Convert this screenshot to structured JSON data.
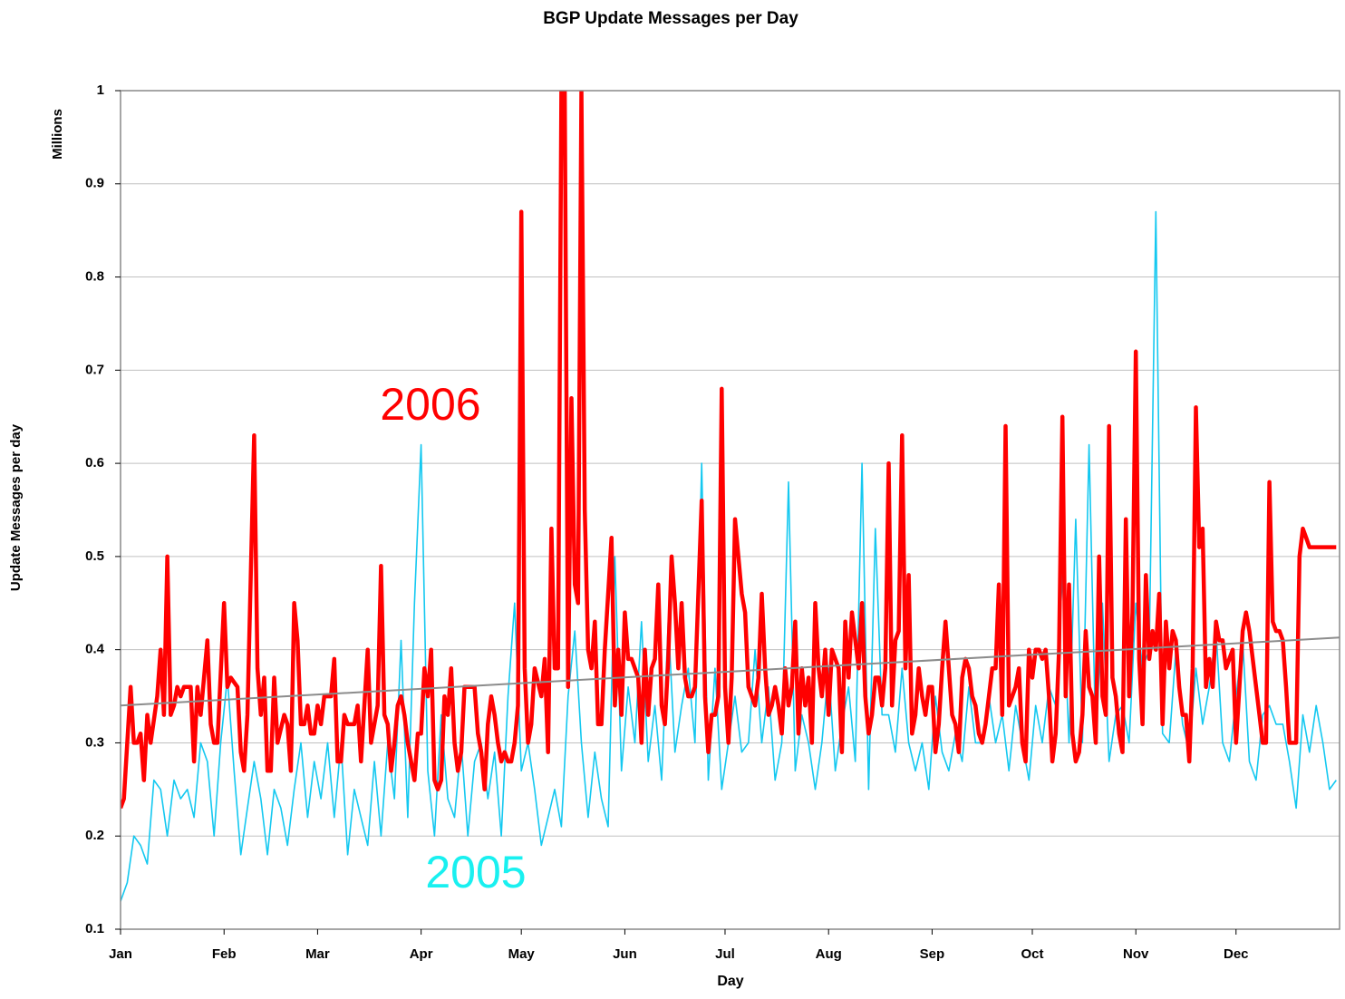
{
  "chart_data": {
    "type": "line",
    "title": "BGP Update Messages per Day",
    "y_label": "Update Messages per day",
    "y_unit_label": "Millions",
    "x_label": "Day",
    "xlim": [
      0,
      365
    ],
    "ylim": [
      0.1,
      1
    ],
    "yticks": [
      0.1,
      0.2,
      0.3,
      0.4,
      0.5,
      0.6,
      0.7,
      0.8,
      0.9,
      1
    ],
    "xticks": [
      {
        "value": 0,
        "label": "Jan"
      },
      {
        "value": 31,
        "label": "Feb"
      },
      {
        "value": 59,
        "label": "Mar"
      },
      {
        "value": 90,
        "label": "Apr"
      },
      {
        "value": 120,
        "label": "May"
      },
      {
        "value": 151,
        "label": "Jun"
      },
      {
        "value": 181,
        "label": "Jul"
      },
      {
        "value": 212,
        "label": "Aug"
      },
      {
        "value": 243,
        "label": "Sep"
      },
      {
        "value": 273,
        "label": "Oct"
      },
      {
        "value": 304,
        "label": "Nov"
      },
      {
        "value": 334,
        "label": "Dec"
      }
    ],
    "grid": true,
    "series": [
      {
        "name": "2005",
        "color": "#14c8f0",
        "width": 1.6,
        "x": [
          0,
          2,
          4,
          6,
          8,
          10,
          12,
          14,
          16,
          18,
          20,
          22,
          24,
          26,
          28,
          30,
          32,
          34,
          36,
          38,
          40,
          42,
          44,
          46,
          48,
          50,
          52,
          54,
          56,
          58,
          60,
          62,
          64,
          66,
          68,
          70,
          72,
          74,
          76,
          78,
          80,
          82,
          84,
          86,
          88,
          90,
          92,
          94,
          96,
          98,
          100,
          102,
          104,
          106,
          108,
          110,
          112,
          114,
          116,
          118,
          120,
          122,
          124,
          126,
          128,
          130,
          132,
          134,
          136,
          138,
          140,
          142,
          144,
          146,
          148,
          150,
          152,
          154,
          156,
          158,
          160,
          162,
          164,
          166,
          168,
          170,
          172,
          174,
          176,
          178,
          180,
          182,
          184,
          186,
          188,
          190,
          192,
          194,
          196,
          198,
          200,
          202,
          204,
          206,
          208,
          210,
          212,
          214,
          216,
          218,
          220,
          222,
          224,
          226,
          228,
          230,
          232,
          234,
          236,
          238,
          240,
          242,
          244,
          246,
          248,
          250,
          252,
          254,
          256,
          258,
          260,
          262,
          264,
          266,
          268,
          270,
          272,
          274,
          276,
          278,
          280,
          282,
          284,
          286,
          288,
          290,
          292,
          294,
          296,
          298,
          300,
          302,
          304,
          306,
          308,
          310,
          312,
          314,
          316,
          318,
          320,
          322,
          324,
          326,
          328,
          330,
          332,
          334,
          336,
          338,
          340,
          342,
          344,
          346,
          348,
          350,
          352,
          354,
          356,
          358,
          360,
          362,
          364
        ],
        "values": [
          0.13,
          0.15,
          0.2,
          0.19,
          0.17,
          0.26,
          0.25,
          0.2,
          0.26,
          0.24,
          0.25,
          0.22,
          0.3,
          0.28,
          0.2,
          0.3,
          0.37,
          0.27,
          0.18,
          0.23,
          0.28,
          0.24,
          0.18,
          0.25,
          0.23,
          0.19,
          0.25,
          0.3,
          0.22,
          0.28,
          0.24,
          0.3,
          0.22,
          0.3,
          0.18,
          0.25,
          0.22,
          0.19,
          0.28,
          0.2,
          0.3,
          0.24,
          0.41,
          0.22,
          0.45,
          0.62,
          0.27,
          0.2,
          0.33,
          0.24,
          0.22,
          0.3,
          0.2,
          0.28,
          0.3,
          0.24,
          0.29,
          0.2,
          0.35,
          0.45,
          0.27,
          0.3,
          0.25,
          0.19,
          0.22,
          0.25,
          0.21,
          0.35,
          0.42,
          0.3,
          0.22,
          0.29,
          0.24,
          0.21,
          0.5,
          0.27,
          0.36,
          0.3,
          0.43,
          0.28,
          0.34,
          0.26,
          0.43,
          0.29,
          0.34,
          0.38,
          0.3,
          0.6,
          0.26,
          0.38,
          0.25,
          0.3,
          0.35,
          0.29,
          0.3,
          0.4,
          0.3,
          0.36,
          0.26,
          0.3,
          0.58,
          0.27,
          0.33,
          0.3,
          0.25,
          0.3,
          0.38,
          0.27,
          0.32,
          0.36,
          0.28,
          0.6,
          0.25,
          0.53,
          0.33,
          0.33,
          0.29,
          0.38,
          0.3,
          0.27,
          0.3,
          0.25,
          0.35,
          0.29,
          0.27,
          0.31,
          0.28,
          0.36,
          0.3,
          0.3,
          0.35,
          0.3,
          0.33,
          0.27,
          0.34,
          0.3,
          0.26,
          0.34,
          0.3,
          0.36,
          0.34,
          0.48,
          0.3,
          0.54,
          0.3,
          0.62,
          0.3,
          0.45,
          0.28,
          0.33,
          0.34,
          0.3,
          0.45,
          0.38,
          0.4,
          0.87,
          0.31,
          0.3,
          0.4,
          0.32,
          0.29,
          0.38,
          0.32,
          0.36,
          0.42,
          0.3,
          0.28,
          0.35,
          0.41,
          0.28,
          0.26,
          0.33,
          0.34,
          0.32,
          0.32,
          0.28,
          0.23,
          0.33,
          0.29,
          0.34,
          0.3,
          0.25,
          0.26
        ]
      },
      {
        "name": "2006",
        "color": "#ff0000",
        "width": 4.5,
        "x": [
          0,
          1,
          3,
          4,
          5,
          6,
          7,
          8,
          9,
          11,
          12,
          13,
          14,
          15,
          16,
          17,
          18,
          19,
          21,
          22,
          23,
          24,
          25,
          26,
          27,
          28,
          29,
          31,
          32,
          33,
          35,
          36,
          37,
          38,
          40,
          41,
          42,
          43,
          44,
          45,
          46,
          47,
          49,
          50,
          51,
          52,
          53,
          54,
          55,
          56,
          57,
          58,
          59,
          60,
          61,
          63,
          64,
          65,
          66,
          67,
          68,
          70,
          71,
          72,
          74,
          75,
          77,
          78,
          79,
          80,
          81,
          82,
          83,
          84,
          85,
          86,
          87,
          88,
          89,
          90,
          91,
          92,
          93,
          94,
          95,
          96,
          97,
          98,
          99,
          100,
          101,
          102,
          103,
          105,
          106,
          107,
          108,
          109,
          110,
          111,
          112,
          113,
          114,
          115,
          116,
          117,
          118,
          119,
          120,
          121,
          122,
          123,
          124,
          126,
          127,
          128,
          129,
          130,
          131,
          132,
          133,
          134,
          135,
          136,
          137,
          138,
          139,
          140,
          141,
          142,
          143,
          144,
          145,
          147,
          148,
          149,
          150,
          151,
          152,
          153,
          155,
          156,
          157,
          158,
          159,
          160,
          161,
          162,
          163,
          164,
          165,
          166,
          167,
          168,
          169,
          170,
          171,
          172,
          174,
          175,
          176,
          177,
          178,
          179,
          180,
          181,
          182,
          183,
          184,
          185,
          186,
          187,
          188,
          189,
          190,
          191,
          192,
          193,
          194,
          195,
          196,
          197,
          198,
          199,
          200,
          201,
          202,
          203,
          204,
          205,
          206,
          207,
          208,
          209,
          210,
          211,
          212,
          213,
          214,
          215,
          216,
          217,
          218,
          219,
          220,
          221,
          222,
          223,
          224,
          225,
          226,
          227,
          228,
          229,
          230,
          231,
          232,
          233,
          234,
          235,
          236,
          237,
          238,
          239,
          240,
          241,
          242,
          243,
          244,
          245,
          246,
          247,
          248,
          249,
          250,
          251,
          252,
          253,
          254,
          255,
          256,
          257,
          258,
          259,
          260,
          261,
          262,
          263,
          264,
          265,
          266,
          267,
          268,
          269,
          270,
          271,
          272,
          273,
          274,
          275,
          276,
          277,
          278,
          279,
          280,
          281,
          282,
          283,
          284,
          285,
          286,
          287,
          288,
          289,
          290,
          291,
          292,
          293,
          294,
          295,
          296,
          297,
          298,
          299,
          300,
          301,
          302,
          303,
          304,
          305,
          306,
          307,
          308,
          309,
          310,
          311,
          312,
          313,
          314,
          315,
          316,
          317,
          318,
          319,
          320,
          321,
          322,
          323,
          324,
          325,
          326,
          327,
          328,
          329,
          330,
          331,
          332,
          333,
          334,
          335,
          336,
          337,
          338,
          339,
          340,
          341,
          342,
          343,
          344,
          345,
          346,
          347,
          348,
          349,
          350,
          351,
          352,
          353,
          354,
          355,
          356,
          357,
          358,
          359,
          360,
          361,
          362,
          363,
          364
        ],
        "values": [
          0.23,
          0.24,
          0.36,
          0.3,
          0.3,
          0.31,
          0.26,
          0.33,
          0.3,
          0.35,
          0.4,
          0.33,
          0.5,
          0.33,
          0.34,
          0.36,
          0.35,
          0.36,
          0.36,
          0.28,
          0.36,
          0.33,
          0.37,
          0.41,
          0.32,
          0.3,
          0.3,
          0.45,
          0.36,
          0.37,
          0.36,
          0.29,
          0.27,
          0.33,
          0.63,
          0.38,
          0.33,
          0.37,
          0.27,
          0.27,
          0.37,
          0.3,
          0.33,
          0.32,
          0.27,
          0.45,
          0.41,
          0.32,
          0.32,
          0.34,
          0.31,
          0.31,
          0.34,
          0.32,
          0.35,
          0.35,
          0.39,
          0.28,
          0.28,
          0.33,
          0.32,
          0.32,
          0.34,
          0.28,
          0.4,
          0.3,
          0.34,
          0.49,
          0.33,
          0.32,
          0.27,
          0.3,
          0.34,
          0.35,
          0.33,
          0.3,
          0.28,
          0.26,
          0.31,
          0.31,
          0.38,
          0.35,
          0.4,
          0.26,
          0.25,
          0.26,
          0.35,
          0.33,
          0.38,
          0.3,
          0.27,
          0.29,
          0.36,
          0.36,
          0.36,
          0.31,
          0.29,
          0.25,
          0.32,
          0.35,
          0.33,
          0.3,
          0.28,
          0.29,
          0.28,
          0.28,
          0.3,
          0.34,
          0.87,
          0.38,
          0.3,
          0.32,
          0.38,
          0.35,
          0.39,
          0.29,
          0.53,
          0.38,
          0.38,
          1.0,
          1.0,
          0.36,
          0.67,
          0.47,
          0.45,
          1.0,
          0.55,
          0.4,
          0.38,
          0.43,
          0.32,
          0.32,
          0.4,
          0.52,
          0.34,
          0.4,
          0.33,
          0.44,
          0.39,
          0.39,
          0.37,
          0.3,
          0.4,
          0.33,
          0.38,
          0.39,
          0.47,
          0.34,
          0.32,
          0.39,
          0.5,
          0.45,
          0.38,
          0.45,
          0.37,
          0.35,
          0.35,
          0.36,
          0.56,
          0.35,
          0.29,
          0.33,
          0.33,
          0.35,
          0.68,
          0.36,
          0.3,
          0.37,
          0.54,
          0.5,
          0.46,
          0.44,
          0.36,
          0.35,
          0.34,
          0.37,
          0.46,
          0.38,
          0.33,
          0.34,
          0.36,
          0.34,
          0.31,
          0.38,
          0.34,
          0.36,
          0.43,
          0.31,
          0.38,
          0.34,
          0.37,
          0.3,
          0.45,
          0.38,
          0.35,
          0.4,
          0.33,
          0.4,
          0.39,
          0.38,
          0.29,
          0.43,
          0.37,
          0.44,
          0.41,
          0.38,
          0.45,
          0.35,
          0.31,
          0.33,
          0.37,
          0.37,
          0.34,
          0.38,
          0.6,
          0.34,
          0.41,
          0.42,
          0.63,
          0.38,
          0.48,
          0.31,
          0.33,
          0.38,
          0.35,
          0.33,
          0.36,
          0.36,
          0.29,
          0.32,
          0.38,
          0.43,
          0.38,
          0.33,
          0.32,
          0.29,
          0.37,
          0.39,
          0.38,
          0.35,
          0.34,
          0.31,
          0.3,
          0.32,
          0.35,
          0.38,
          0.38,
          0.47,
          0.33,
          0.64,
          0.34,
          0.35,
          0.36,
          0.38,
          0.3,
          0.28,
          0.4,
          0.37,
          0.4,
          0.4,
          0.39,
          0.4,
          0.35,
          0.28,
          0.31,
          0.4,
          0.65,
          0.35,
          0.47,
          0.31,
          0.28,
          0.29,
          0.33,
          0.42,
          0.36,
          0.35,
          0.3,
          0.5,
          0.35,
          0.33,
          0.64,
          0.37,
          0.35,
          0.31,
          0.29,
          0.54,
          0.35,
          0.44,
          0.72,
          0.39,
          0.32,
          0.48,
          0.39,
          0.42,
          0.4,
          0.46,
          0.32,
          0.43,
          0.38,
          0.42,
          0.41,
          0.36,
          0.33,
          0.33,
          0.28,
          0.38,
          0.66,
          0.51,
          0.53,
          0.36,
          0.39,
          0.36,
          0.43,
          0.41,
          0.41,
          0.38,
          0.39,
          0.4,
          0.3,
          0.36,
          0.42,
          0.44,
          0.42,
          0.39,
          0.36,
          0.33,
          0.3,
          0.3,
          0.58,
          0.43,
          0.42,
          0.42,
          0.41,
          0.36,
          0.3,
          0.3,
          0.3,
          0.5,
          0.53,
          0.52,
          0.51,
          0.51,
          0.51,
          0.51,
          0.51,
          0.51,
          0.51,
          0.51,
          0.51
        ]
      },
      {
        "color": "#8c8c8c",
        "width": 2,
        "x": [
          0,
          365
        ],
        "values": [
          0.34,
          0.413
        ]
      }
    ]
  }
}
